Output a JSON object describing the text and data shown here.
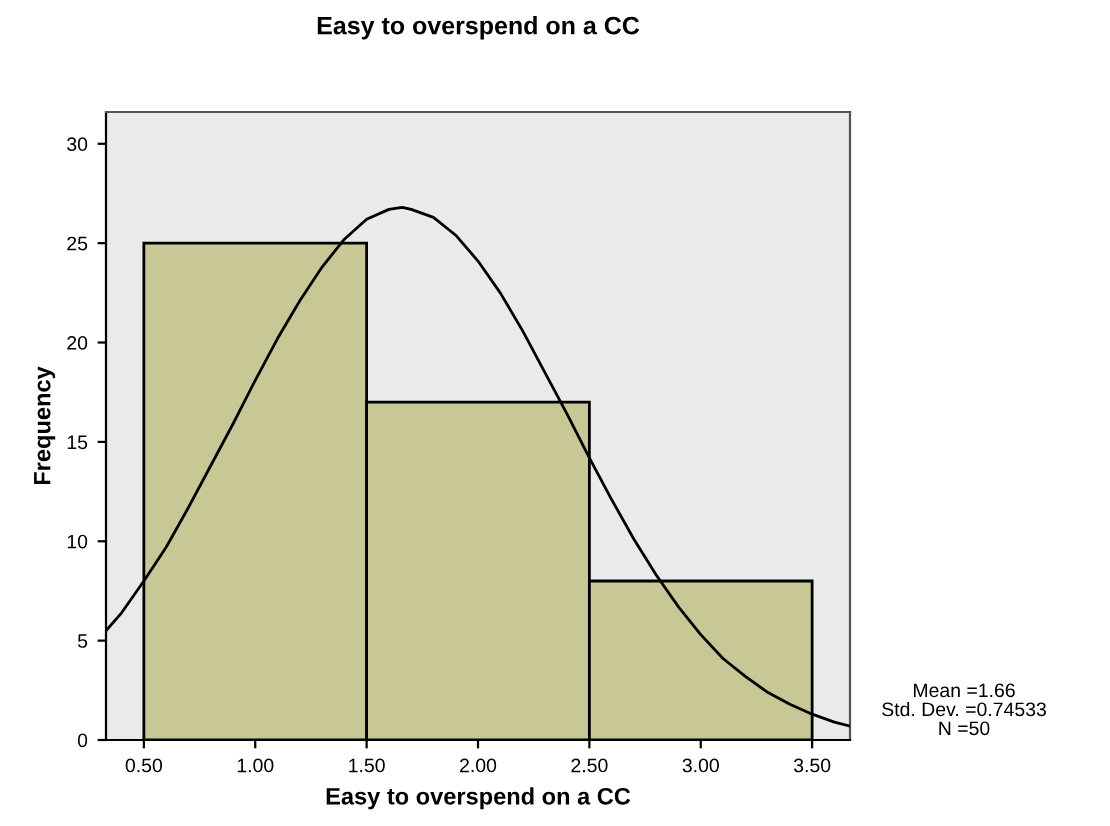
{
  "chart_data": {
    "type": "histogram",
    "title": "Easy to overspend on a CC",
    "xlabel": "Easy to overspend on a CC",
    "ylabel": "Frequency",
    "bins": [
      0.5,
      1.5,
      2.5,
      3.5
    ],
    "values": [
      25,
      17,
      8
    ],
    "color": "#c8c896",
    "series": [
      {
        "type": "line",
        "color": "#000000",
        "x": [
          0.33,
          0.4,
          0.5,
          0.6,
          0.7,
          0.8,
          0.9,
          1.0,
          1.1,
          1.2,
          1.3,
          1.4,
          1.5,
          1.6,
          1.66,
          1.7,
          1.8,
          1.9,
          2.0,
          2.1,
          2.2,
          2.3,
          2.4,
          2.5,
          2.6,
          2.7,
          2.8,
          2.9,
          3.0,
          3.1,
          3.2,
          3.3,
          3.4,
          3.5,
          3.6,
          3.67
        ],
        "values": [
          5.5,
          6.4,
          8.0,
          9.7,
          11.7,
          13.8,
          15.9,
          18.1,
          20.2,
          22.1,
          23.8,
          25.2,
          26.2,
          26.7,
          26.8,
          26.7,
          26.3,
          25.4,
          24.1,
          22.5,
          20.6,
          18.5,
          16.4,
          14.2,
          12.1,
          10.1,
          8.3,
          6.7,
          5.3,
          4.1,
          3.2,
          2.4,
          1.8,
          1.3,
          0.9,
          0.7
        ]
      }
    ],
    "xlim": [
      0.33,
      3.67
    ],
    "xticks": [
      {
        "value": 0.5,
        "label": "0.50"
      },
      {
        "value": 1.0,
        "label": "1.00"
      },
      {
        "value": 1.5,
        "label": "1.50"
      },
      {
        "value": 2.0,
        "label": "2.00"
      },
      {
        "value": 2.5,
        "label": "2.50"
      },
      {
        "value": 3.0,
        "label": "3.00"
      },
      {
        "value": 3.5,
        "label": "3.50"
      }
    ],
    "ylim": [
      0,
      31.6
    ],
    "yticks": [
      0,
      5,
      10,
      15,
      20,
      25,
      30
    ],
    "annotations": [
      "Mean =1.66",
      "Std. Dev. =0.74533",
      "N =50"
    ],
    "grid": false,
    "legend": false
  }
}
